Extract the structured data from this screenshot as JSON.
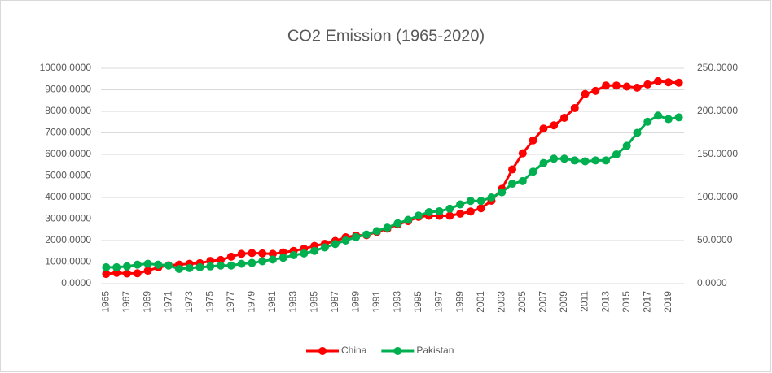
{
  "chart_data": {
    "type": "line",
    "title": "CO2 Emission (1965-2020)",
    "categories": [
      "1965",
      null,
      "1967",
      null,
      "1969",
      null,
      "1971",
      null,
      "1973",
      null,
      "1975",
      null,
      "1977",
      null,
      "1979",
      null,
      "1981",
      null,
      "1983",
      null,
      "1985",
      null,
      "1987",
      null,
      "1989",
      null,
      "1991",
      null,
      "1993",
      null,
      "1995",
      null,
      "1997",
      null,
      "1999",
      null,
      "2001",
      null,
      "2003",
      null,
      "2005",
      null,
      "2007",
      null,
      "2009",
      null,
      "2011",
      null,
      "2013",
      null,
      "2015",
      null,
      "2017",
      null,
      "2019",
      null
    ],
    "series": [
      {
        "name": "China",
        "color": "#ff0000",
        "values": [
          450,
          500,
          470,
          480,
          600,
          750,
          850,
          880,
          920,
          950,
          1050,
          1100,
          1250,
          1380,
          1420,
          1400,
          1380,
          1450,
          1520,
          1620,
          1750,
          1850,
          1980,
          2150,
          2230,
          2250,
          2400,
          2550,
          2750,
          2900,
          3100,
          3150,
          3150,
          3150,
          3250,
          3350,
          3500,
          3850,
          4400,
          5300,
          6050,
          6650,
          7200,
          7350,
          7700,
          8150,
          8800,
          8950,
          9200,
          9200,
          9150,
          9100,
          9250,
          9400,
          9350,
          9330
        ]
      },
      {
        "name": "Pakistan",
        "color": "#00b050",
        "axis": "y2",
        "values": [
          19,
          19,
          20,
          22,
          23,
          22,
          21,
          17,
          18,
          19,
          20,
          21,
          21,
          23,
          24,
          26,
          28,
          30,
          33,
          35,
          38,
          42,
          46,
          50,
          54,
          57,
          61,
          65,
          70,
          74,
          79,
          83,
          84,
          87,
          92,
          96,
          96,
          100,
          106,
          116,
          119,
          130,
          140,
          145,
          145,
          143,
          142,
          143,
          143,
          150,
          160,
          175,
          188,
          195,
          191,
          193
        ]
      }
    ],
    "ylim": [
      0,
      10000
    ],
    "yticks": [
      {
        "value": 0,
        "label": "0.0000"
      },
      {
        "value": 1000,
        "label": "1000.0000"
      },
      {
        "value": 2000,
        "label": "2000.0000"
      },
      {
        "value": 3000,
        "label": "3000.0000"
      },
      {
        "value": 4000,
        "label": "4000.0000"
      },
      {
        "value": 5000,
        "label": "5000.0000"
      },
      {
        "value": 6000,
        "label": "6000.0000"
      },
      {
        "value": 7000,
        "label": "7000.0000"
      },
      {
        "value": 8000,
        "label": "8000.0000"
      },
      {
        "value": 9000,
        "label": "9000.0000"
      },
      {
        "value": 10000,
        "label": "10000.0000"
      }
    ],
    "y2lim": [
      0,
      250
    ],
    "y2ticks": [
      {
        "value": 0,
        "label": "0.0000"
      },
      {
        "value": 50,
        "label": "50.0000"
      },
      {
        "value": 100,
        "label": "100.0000"
      },
      {
        "value": 150,
        "label": "150.0000"
      },
      {
        "value": 200,
        "label": "200.0000"
      },
      {
        "value": 250,
        "label": "250.0000"
      }
    ],
    "grid": true,
    "legend": "bottom"
  }
}
